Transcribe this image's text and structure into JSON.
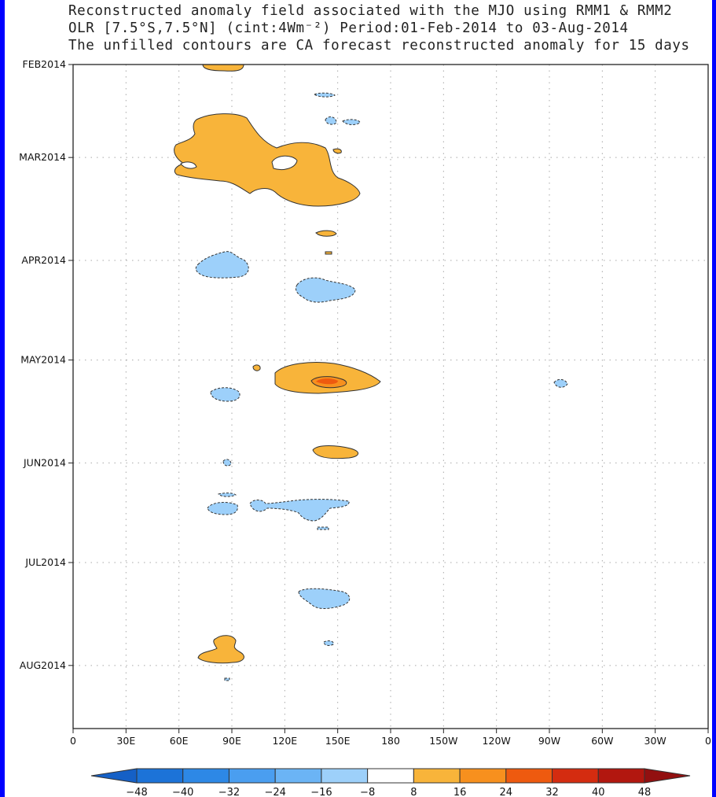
{
  "title_lines": [
    "Reconstructed anomaly field associated with the MJO using RMM1 & RMM2",
    "OLR [7.5°S,7.5°N] (cint:4Wm⁻²) Period:01-Feb-2014 to 03-Aug-2014",
    "The unfilled contours are CA forecast reconstructed anomaly for 15 days"
  ],
  "chart_data": {
    "type": "heatmap",
    "title": "Reconstructed anomaly field associated with the MJO using RMM1 & RMM2",
    "xlabel": "",
    "ylabel": "",
    "x_tick_labels": [
      "0",
      "30E",
      "60E",
      "90E",
      "120E",
      "150E",
      "180",
      "150W",
      "120W",
      "90W",
      "60W",
      "30W",
      "0"
    ],
    "x_tick_lon": [
      0,
      30,
      60,
      90,
      120,
      150,
      180,
      210,
      240,
      270,
      300,
      330,
      360
    ],
    "xlim": [
      0,
      360
    ],
    "y_tick_labels": [
      "FEB2014",
      "MAR2014",
      "APR2014",
      "MAY2014",
      "JUN2014",
      "JUL2014",
      "AUG2014"
    ],
    "y_tick_dates": [
      "2014-02-01",
      "2014-03-01",
      "2014-04-01",
      "2014-05-01",
      "2014-06-01",
      "2014-07-01",
      "2014-08-01"
    ],
    "ylim": [
      "2014-02-01",
      "2014-08-20"
    ],
    "grid": true,
    "colorbar": {
      "levels": [
        "-48",
        "-40",
        "-32",
        "-24",
        "-16",
        "-8",
        "8",
        "16",
        "24",
        "32",
        "40",
        "48"
      ],
      "colors": [
        "#1560c6",
        "#1c73d8",
        "#2d88e6",
        "#4a9ef0",
        "#6bb4f5",
        "#9dd0fa",
        "#ffffff",
        "#f8b43a",
        "#f7901e",
        "#ee5a0f",
        "#d42c10",
        "#b2170f",
        "#921010"
      ]
    },
    "anomaly_features": [
      {
        "sign": "positive",
        "level": "8",
        "lon": [
          65,
          150
        ],
        "date": [
          "2014-02-18",
          "2014-03-14"
        ]
      },
      {
        "sign": "positive",
        "level": "8",
        "lon": [
          80,
          90
        ],
        "date": [
          "2014-02-01",
          "2014-02-04"
        ]
      },
      {
        "sign": "negative",
        "level": "-8",
        "lon": [
          73,
          100
        ],
        "date": [
          "2014-03-31",
          "2014-04-05"
        ]
      },
      {
        "sign": "negative",
        "level": "-8",
        "lon": [
          128,
          160
        ],
        "date": [
          "2014-04-08",
          "2014-04-15"
        ]
      },
      {
        "sign": "positive",
        "level": "8",
        "lon": [
          130,
          175
        ],
        "date": [
          "2014-04-30",
          "2014-05-10"
        ]
      },
      {
        "sign": "positive",
        "level": "16",
        "lon": [
          140,
          152
        ],
        "date": [
          "2014-05-04",
          "2014-05-08"
        ]
      },
      {
        "sign": "negative",
        "level": "-8",
        "lon": [
          79,
          94
        ],
        "date": [
          "2014-05-08",
          "2014-05-13"
        ]
      },
      {
        "sign": "positive",
        "level": "8",
        "lon": [
          140,
          158
        ],
        "date": [
          "2014-05-25",
          "2014-05-29"
        ]
      },
      {
        "sign": "negative",
        "level": "-8",
        "lon": [
          75,
          160
        ],
        "date": [
          "2014-06-10",
          "2014-06-17"
        ]
      },
      {
        "sign": "negative",
        "level": "-8",
        "lon": [
          128,
          155
        ],
        "date": [
          "2014-07-07",
          "2014-07-13"
        ]
      },
      {
        "sign": "positive",
        "level": "8",
        "lon": [
          75,
          100
        ],
        "date": [
          "2014-07-28",
          "2014-08-04"
        ]
      }
    ]
  }
}
